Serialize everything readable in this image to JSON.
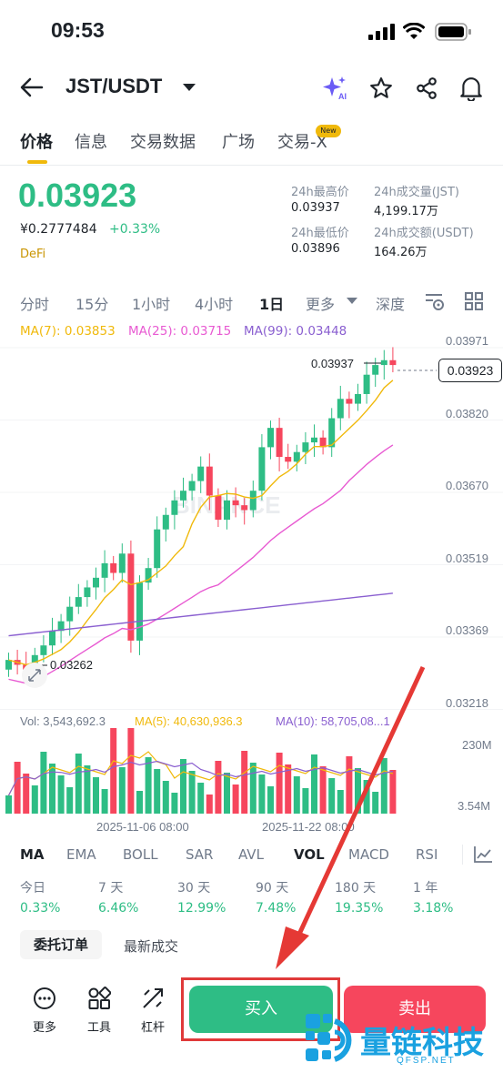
{
  "status": {
    "time": "09:53"
  },
  "header": {
    "pair": "JST/USDT"
  },
  "tabs": [
    {
      "label": "价格"
    },
    {
      "label": "信息"
    },
    {
      "label": "交易数据"
    },
    {
      "label": "广场"
    },
    {
      "label": "交易-X",
      "badge": "New"
    }
  ],
  "price": {
    "last": "0.03923",
    "cny": "¥0.2777484",
    "change": "+0.33%",
    "tag": "DeFi"
  },
  "stats": {
    "high_label": "24h最高价",
    "high": "0.03937",
    "low_label": "24h最低价",
    "low": "0.03896",
    "vol_label": "24h成交量(JST)",
    "vol": "4,199.17万",
    "amt_label": "24h成交额(USDT)",
    "amt": "164.26万"
  },
  "timeframes": [
    "分时",
    "15分",
    "1小时",
    "4小时",
    "1日",
    "更多",
    "深度"
  ],
  "ma_legend": {
    "ma7": "MA(7): 0.03853",
    "ma25": "MA(25): 0.03715",
    "ma99": "MA(99): 0.03448"
  },
  "chart": {
    "price_axis": [
      "0.03971",
      "0.03820",
      "0.03670",
      "0.03519",
      "0.03369",
      "0.03218"
    ],
    "high_marker": "0.03937",
    "low_marker": "0.03262",
    "current_price": "0.03923",
    "volume_legend": {
      "vol": "Vol: 3,543,692.3",
      "ma5": "MA(5): 40,630,936.3",
      "ma10": "MA(10): 58,705,08...1"
    },
    "volume_axis": [
      "230M",
      "3.54M"
    ],
    "dates": [
      "2025-11-06 08:00",
      "2025-11-22 08:00"
    ]
  },
  "chart_data": {
    "type": "candlestick",
    "x": [
      "2025-11-06 08:00",
      "2025-11-22 08:00"
    ],
    "ylim": [
      0.03218,
      0.03971
    ],
    "candles_close_approx": [
      0.0331,
      0.033,
      0.0329,
      0.0332,
      0.0334,
      0.0337,
      0.0339,
      0.0342,
      0.0344,
      0.0346,
      0.0348,
      0.0351,
      0.0349,
      0.0353,
      0.0335,
      0.0347,
      0.035,
      0.0358,
      0.0361,
      0.0364,
      0.0366,
      0.0368,
      0.0371,
      0.0365,
      0.036,
      0.0364,
      0.0363,
      0.0362,
      0.0366,
      0.0375,
      0.0379,
      0.0373,
      0.0372,
      0.0374,
      0.0376,
      0.0377,
      0.0375,
      0.0381,
      0.0385,
      0.0384,
      0.0386,
      0.039,
      0.0392,
      0.0393,
      0.0392
    ]
  },
  "indicators": [
    "MA",
    "EMA",
    "BOLL",
    "SAR",
    "AVL",
    "VOL",
    "MACD",
    "RSI"
  ],
  "performance": [
    {
      "label": "今日",
      "value": "0.33%"
    },
    {
      "label": "7 天",
      "value": "6.46%"
    },
    {
      "label": "30 天",
      "value": "12.99%"
    },
    {
      "label": "90 天",
      "value": "7.48%"
    },
    {
      "label": "180 天",
      "value": "19.35%"
    },
    {
      "label": "1 年",
      "value": "3.18%"
    }
  ],
  "orders": {
    "active": "委托订单",
    "other": "最新成交"
  },
  "tools": [
    {
      "label": "更多"
    },
    {
      "label": "工具"
    },
    {
      "label": "杠杆"
    }
  ],
  "actions": {
    "buy": "买入",
    "sell": "卖出"
  },
  "watermark": {
    "text": "量链科技",
    "sub": "QFSP.NET",
    "bg": "BINANCE"
  },
  "colors": {
    "up": "#2ebd85",
    "down": "#f6465d",
    "accent": "#f0b90b",
    "ma7": "#f0b90b",
    "ma25": "#e85ad2",
    "ma99": "#8a5fd0"
  }
}
